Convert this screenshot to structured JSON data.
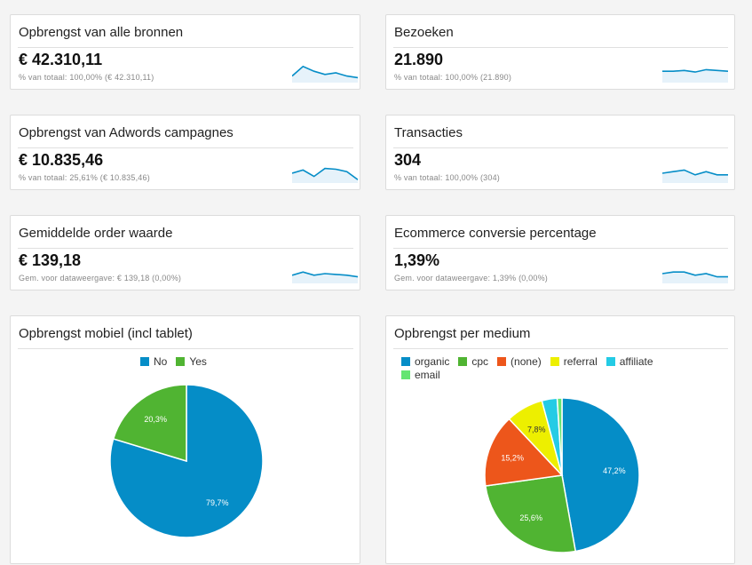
{
  "metrics": [
    {
      "title": "Opbrengst van alle bronnen",
      "value": "€ 42.310,11",
      "sub": "% van totaal: 100,00% (€ 42.310,11)",
      "trend": [
        3,
        9,
        6,
        4,
        5,
        3,
        2
      ]
    },
    {
      "title": "Bezoeken",
      "value": "21.890",
      "sub": "% van totaal: 100,00% (21.890)",
      "trend": [
        6,
        6,
        6.5,
        5.5,
        7,
        6.5,
        6
      ]
    },
    {
      "title": "Opbrengst van Adwords campagnes",
      "value": "€ 10.835,46",
      "sub": "% van totaal: 25,61% (€ 10.835,46)",
      "trend": [
        5,
        7,
        3,
        8,
        7.5,
        6,
        1
      ]
    },
    {
      "title": "Transacties",
      "value": "304",
      "sub": "% van totaal: 100,00% (304)",
      "trend": [
        5,
        6,
        7,
        4,
        6,
        4,
        4
      ]
    },
    {
      "title": "Gemiddelde order waarde",
      "value": "€ 139,18",
      "sub": "Gem. voor dataweergave: € 139,18 (0,00%)",
      "trend": [
        4,
        6,
        4,
        5,
        4.5,
        4,
        3
      ]
    },
    {
      "title": "Ecommerce conversie percentage",
      "value": "1,39%",
      "sub": "Gem. voor dataweergave: 1,39% (0,00%)",
      "trend": [
        5,
        6,
        6,
        4,
        5,
        3,
        3
      ]
    }
  ],
  "charts": [
    {
      "title": "Opbrengst mobiel (incl tablet)"
    },
    {
      "title": "Opbrengst per medium"
    }
  ],
  "chart_data": [
    {
      "type": "pie",
      "title": "Opbrengst mobiel (incl tablet)",
      "categories": [
        "No",
        "Yes"
      ],
      "values": [
        79.7,
        20.3
      ],
      "labels": [
        "79,7%",
        "20,3%"
      ],
      "colors": [
        "#058dc7",
        "#50b432"
      ],
      "legend": "top"
    },
    {
      "type": "pie",
      "title": "Opbrengst per medium",
      "categories": [
        "organic",
        "cpc",
        "(none)",
        "referral",
        "affiliate",
        "email"
      ],
      "values": [
        47.2,
        25.6,
        15.2,
        7.8,
        3.2,
        1.0
      ],
      "labels": [
        "47,2%",
        "25,6%",
        "15,2%",
        "7,8%",
        "",
        ""
      ],
      "colors": [
        "#058dc7",
        "#50b432",
        "#ed561b",
        "#edef00",
        "#24cbe5",
        "#64e572"
      ],
      "legend": "top"
    }
  ],
  "style": {
    "spark_line": "#058dc7",
    "spark_fill": "#e6f2fa"
  }
}
